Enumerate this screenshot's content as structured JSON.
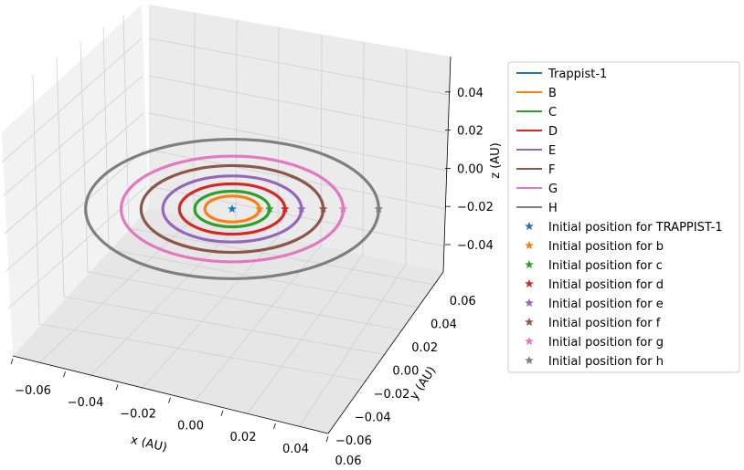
{
  "chart_data": {
    "type": "line",
    "projection": "3d",
    "xlabel": "x (AU)",
    "ylabel": "y (AU)",
    "zlabel": "z (AU)",
    "xlim": [
      -0.065,
      0.065
    ],
    "ylim": [
      -0.065,
      0.065
    ],
    "zlim": [
      -0.055,
      0.055
    ],
    "x_ticks": [
      "−0.06",
      "−0.04",
      "−0.02",
      "0.00",
      "0.02",
      "0.04",
      "0.06"
    ],
    "y_ticks": [
      "−0.06",
      "−0.04",
      "−0.02",
      "0.00",
      "0.02",
      "0.04",
      "0.06"
    ],
    "z_ticks": [
      "−0.04",
      "−0.02",
      "0.00",
      "0.02",
      "0.04"
    ],
    "grid": true,
    "legend_position": "right",
    "series": [
      {
        "name": "Trappist-1",
        "color": "#1f77b4",
        "orbit_radius_au": 0.0,
        "z": 0
      },
      {
        "name": "B",
        "color": "#ff7f0e",
        "orbit_radius_au": 0.0115,
        "z": 0
      },
      {
        "name": "C",
        "color": "#2ca02c",
        "orbit_radius_au": 0.0158,
        "z": 0
      },
      {
        "name": "D",
        "color": "#d62728",
        "orbit_radius_au": 0.0223,
        "z": 0
      },
      {
        "name": "E",
        "color": "#9467bd",
        "orbit_radius_au": 0.0293,
        "z": 0
      },
      {
        "name": "F",
        "color": "#8c564b",
        "orbit_radius_au": 0.0385,
        "z": 0
      },
      {
        "name": "G",
        "color": "#e377c2",
        "orbit_radius_au": 0.0469,
        "z": 0
      },
      {
        "name": "H",
        "color": "#7f7f7f",
        "orbit_radius_au": 0.0619,
        "z": 0
      }
    ],
    "initial_positions": [
      {
        "name": "Initial position for TRAPPIST-1",
        "color": "#1f77b4",
        "x": 0.0,
        "y": 0.0,
        "z": 0
      },
      {
        "name": "Initial position for b",
        "color": "#ff7f0e",
        "x": 0.0115,
        "y": 0.0,
        "z": 0
      },
      {
        "name": "Initial position for c",
        "color": "#2ca02c",
        "x": 0.0158,
        "y": 0.0,
        "z": 0
      },
      {
        "name": "Initial position for d",
        "color": "#d62728",
        "x": 0.0223,
        "y": 0.0,
        "z": 0
      },
      {
        "name": "Initial position for e",
        "color": "#9467bd",
        "x": 0.0293,
        "y": 0.0,
        "z": 0
      },
      {
        "name": "Initial position for f",
        "color": "#8c564b",
        "x": 0.0385,
        "y": 0.0,
        "z": 0
      },
      {
        "name": "Initial position for g",
        "color": "#e377c2",
        "x": 0.0469,
        "y": 0.0,
        "z": 0
      },
      {
        "name": "Initial position for h",
        "color": "#7f7f7f",
        "x": 0.0619,
        "y": 0.0,
        "z": 0
      }
    ]
  }
}
